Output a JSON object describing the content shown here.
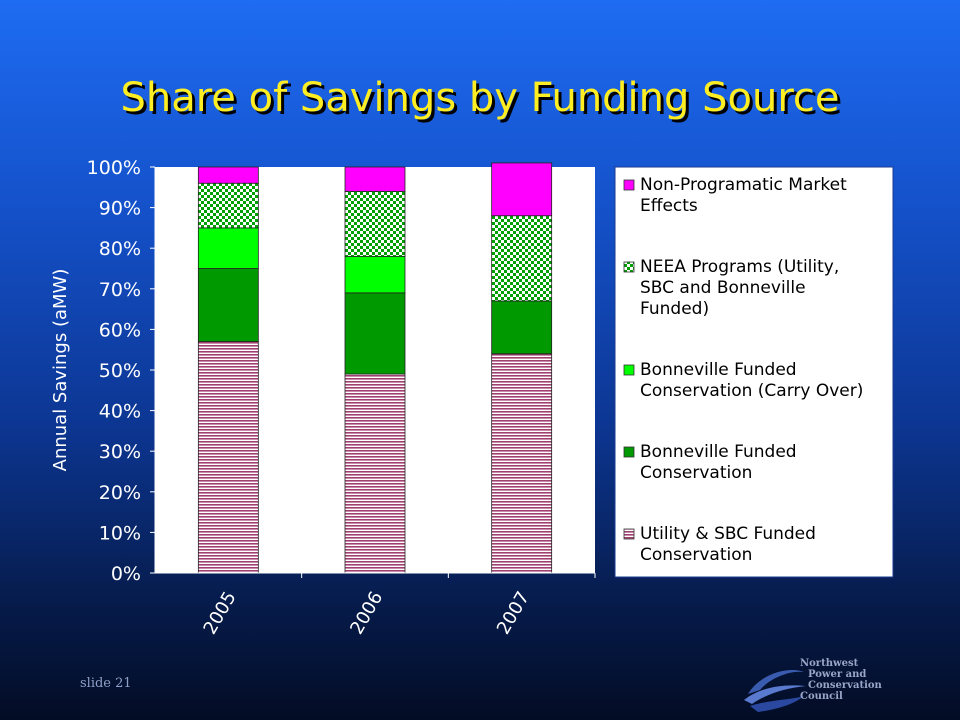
{
  "slide": {
    "title": "Share of Savings by Funding Source",
    "slide_number": "slide 21",
    "logo_lines": [
      "Northwest",
      "Power and",
      "Conservation",
      "Council"
    ]
  },
  "colors": {
    "background_top": "#1e6cf2",
    "background_bottom": "#030c24",
    "title": "#ffee22",
    "plot_background": "#ffffff",
    "non_programatic": "#ff00ff",
    "neea": "#00a000",
    "bonneville_carry_over": "#00ff00",
    "bonneville": "#009900",
    "utility_sbc": "#a04070"
  },
  "chart_data": {
    "type": "bar",
    "stacked": true,
    "percent_stacked": true,
    "categories": [
      "2005",
      "2006",
      "2007"
    ],
    "ylabel": "Annual Savings (aMW)",
    "xlabel": "",
    "ylim": [
      0,
      100
    ],
    "ytick_labels": [
      "0%",
      "10%",
      "20%",
      "30%",
      "40%",
      "50%",
      "60%",
      "70%",
      "80%",
      "90%",
      "100%"
    ],
    "grid": false,
    "legend_position": "right",
    "series": [
      {
        "name": "Utility & SBC Funded Conservation",
        "legend_lines": [
          "Utility & SBC Funded",
          "Conservation"
        ],
        "pattern": "horizontal-stripes",
        "color": "#a04070",
        "values": [
          57,
          49,
          54
        ]
      },
      {
        "name": "Bonneville Funded Conservation",
        "legend_lines": [
          "Bonneville Funded",
          "Conservation"
        ],
        "pattern": "solid",
        "color": "#009900",
        "values": [
          18,
          20,
          13
        ]
      },
      {
        "name": "Bonneville Funded Conservation (Carry Over)",
        "legend_lines": [
          "Bonneville Funded",
          "Conservation (Carry Over)"
        ],
        "pattern": "solid",
        "color": "#00ff00",
        "values": [
          10,
          9,
          0
        ]
      },
      {
        "name": "NEEA Programs (Utility, SBC and Bonneville Funded)",
        "legend_lines": [
          "NEEA Programs (Utility,",
          "SBC and Bonneville",
          "Funded)"
        ],
        "pattern": "checker",
        "color": "#00a000",
        "values": [
          11,
          16,
          21
        ]
      },
      {
        "name": "Non-Programatic Market Effects",
        "legend_lines": [
          "Non-Programatic Market",
          "Effects"
        ],
        "pattern": "solid",
        "color": "#ff00ff",
        "values": [
          4,
          6,
          13
        ]
      }
    ]
  }
}
